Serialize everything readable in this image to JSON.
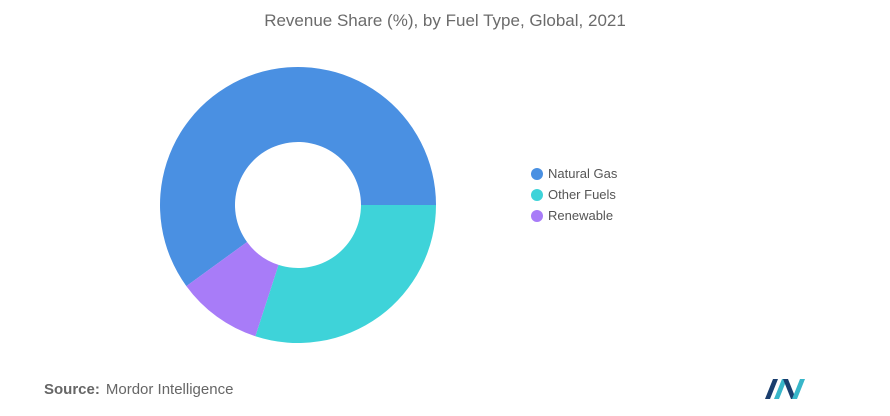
{
  "chart_data": {
    "type": "pie",
    "title": "Revenue Share (%), by Fuel Type, Global, 2021",
    "categories": [
      "Natural Gas",
      "Other Fuels",
      "Renewable"
    ],
    "values": [
      60,
      30,
      10
    ],
    "colors": [
      "#4a90e2",
      "#3ed3d9",
      "#a87cf8"
    ],
    "legend_position": "right",
    "donut": true
  },
  "source": {
    "label": "Source:",
    "text": "Mordor Intelligence"
  },
  "logo": {
    "icon": "mordor-intelligence-logo-icon",
    "colors": [
      "#1a3e6e",
      "#38b6c9"
    ]
  }
}
